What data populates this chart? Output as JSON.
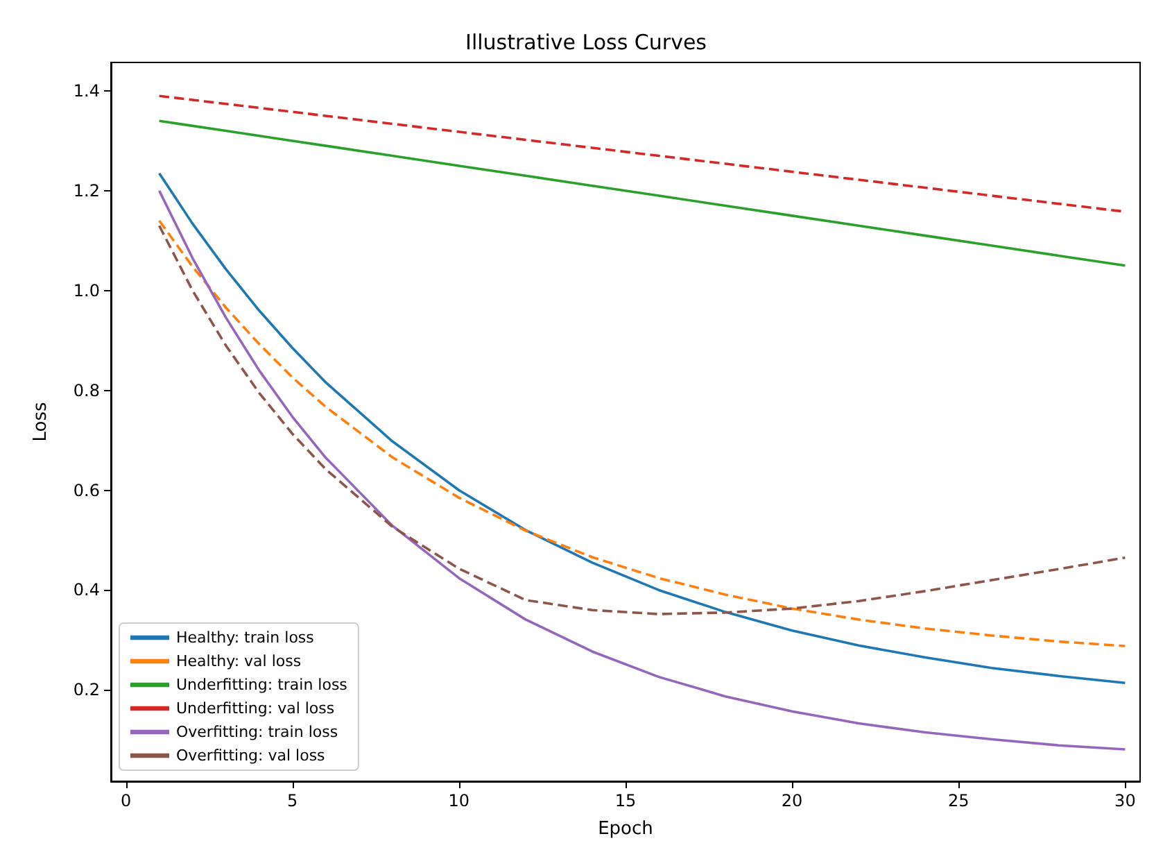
{
  "chart_data": {
    "type": "line",
    "title": "Illustrative Loss Curves",
    "xlabel": "Epoch",
    "ylabel": "Loss",
    "x": [
      1,
      2,
      3,
      4,
      5,
      6,
      8,
      10,
      12,
      14,
      16,
      18,
      20,
      22,
      24,
      26,
      28,
      30
    ],
    "xlim": [
      -0.45,
      30.45
    ],
    "xticks": [
      0,
      5,
      10,
      15,
      20,
      25,
      30
    ],
    "ylim": [
      0.017,
      1.457
    ],
    "yticks": [
      0.2,
      0.4,
      0.6,
      0.8,
      {
        "value": 1,
        "label": "1.0"
      },
      1.2,
      1.4
    ],
    "grid": false,
    "legend": "bottom left",
    "marker": "none",
    "series": [
      {
        "name": "Healthy: train loss",
        "color": "#1f77b4",
        "line_style": "solid",
        "values": [
          1.235,
          1.134,
          1.043,
          0.96,
          0.885,
          0.816,
          0.698,
          0.6,
          0.52,
          0.455,
          0.4,
          0.356,
          0.319,
          0.289,
          0.265,
          0.244,
          0.228,
          0.214
        ]
      },
      {
        "name": "Healthy: val loss",
        "color": "#ff7f0e",
        "line_style": "dashed",
        "values": [
          1.14,
          1.048,
          0.966,
          0.893,
          0.826,
          0.767,
          0.666,
          0.585,
          0.519,
          0.466,
          0.424,
          0.391,
          0.363,
          0.341,
          0.323,
          0.309,
          0.297,
          0.288
        ]
      },
      {
        "name": "Underfitting: train loss",
        "color": "#2ca02c",
        "line_style": "solid",
        "values": [
          1.34,
          1.33,
          1.32,
          1.31,
          1.3,
          1.29,
          1.27,
          1.25,
          1.23,
          1.21,
          1.19,
          1.17,
          1.15,
          1.13,
          1.11,
          1.09,
          1.07,
          1.05
        ]
      },
      {
        "name": "Underfitting: val loss",
        "color": "#d62728",
        "line_style": "dashed",
        "values": [
          1.39,
          1.382,
          1.374,
          1.366,
          1.358,
          1.35,
          1.334,
          1.318,
          1.302,
          1.286,
          1.27,
          1.254,
          1.238,
          1.222,
          1.206,
          1.19,
          1.174,
          1.158
        ]
      },
      {
        "name": "Overfitting: train loss",
        "color": "#9467bd",
        "line_style": "solid",
        "values": [
          1.2,
          1.065,
          0.946,
          0.84,
          0.747,
          0.665,
          0.529,
          0.424,
          0.341,
          0.277,
          0.226,
          0.187,
          0.157,
          0.133,
          0.115,
          0.101,
          0.089,
          0.081
        ]
      },
      {
        "name": "Overfitting: val loss",
        "color": "#8c564b",
        "line_style": "dashed",
        "values": [
          1.13,
          1.0,
          0.89,
          0.795,
          0.713,
          0.642,
          0.527,
          0.443,
          0.38,
          0.36,
          0.352,
          0.355,
          0.363,
          0.378,
          0.398,
          0.42,
          0.442,
          0.465
        ]
      }
    ]
  }
}
